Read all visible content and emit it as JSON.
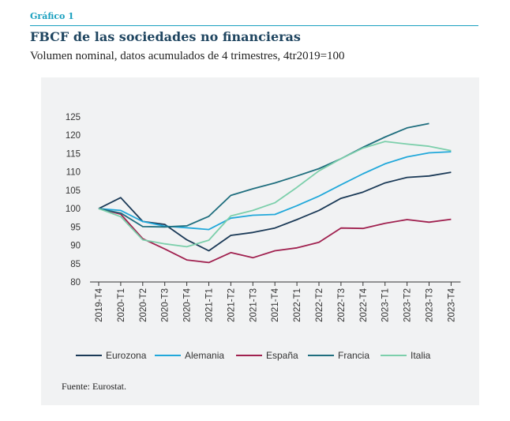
{
  "figure_label": "Gráfico 1",
  "title": "FBCF de las sociedades no financieras",
  "subtitle": "Volumen nominal, datos acumulados de 4 trimestres,  4tr2019=100",
  "source": "Fuente: Eurostat.",
  "chart_data": {
    "type": "line",
    "title": "FBCF de las sociedades no financieras",
    "xlabel": "",
    "ylabel": "",
    "ylim": [
      80,
      125
    ],
    "yticks": [
      80,
      85,
      90,
      95,
      100,
      105,
      110,
      115,
      120,
      125
    ],
    "grid": false,
    "legend_position": "bottom",
    "x": [
      "2019-T4",
      "2020-T1",
      "2020-T2",
      "2020-T3",
      "2020-T4",
      "2021-T1",
      "2021-T2",
      "2021-T3",
      "2021-T4",
      "2022-T1",
      "2022-T2",
      "2022-T3",
      "2022-T4",
      "2023-T1",
      "2023-T2",
      "2023-T3",
      "2023-T4"
    ],
    "series": [
      {
        "name": "Eurozona",
        "color": "#1b3a57",
        "values": [
          100,
          103,
          96.5,
          95.7,
          91.5,
          88.5,
          92.7,
          93.5,
          94.7,
          97,
          99.5,
          102.8,
          104.5,
          107,
          108.5,
          108.9,
          109.9
        ]
      },
      {
        "name": "Alemania",
        "color": "#21a8da",
        "values": [
          100,
          99.5,
          96.5,
          95.2,
          94.8,
          94.3,
          97.4,
          98.2,
          98.4,
          100.8,
          103.4,
          106.5,
          109.5,
          112.2,
          114.1,
          115.2,
          115.5
        ]
      },
      {
        "name": "España",
        "color": "#a0214f",
        "values": [
          100,
          98.5,
          91.8,
          89,
          86,
          85.3,
          88,
          86.6,
          88.5,
          89.3,
          90.8,
          94.7,
          94.6,
          96,
          97,
          96.3,
          97.1
        ]
      },
      {
        "name": "Francia",
        "color": "#1f6e7e",
        "values": [
          100,
          98.8,
          95.1,
          95,
          95.3,
          97.9,
          103.6,
          105.4,
          107,
          108.9,
          110.9,
          113.6,
          116.7,
          119.5,
          122,
          123.2,
          null
        ]
      },
      {
        "name": "Italia",
        "color": "#7ccfab",
        "values": [
          100,
          97.8,
          91.5,
          90.4,
          89.6,
          91.4,
          98,
          99.5,
          101.6,
          105.8,
          110.3,
          113.6,
          116.5,
          118.3,
          117.6,
          117,
          115.8
        ]
      }
    ]
  }
}
